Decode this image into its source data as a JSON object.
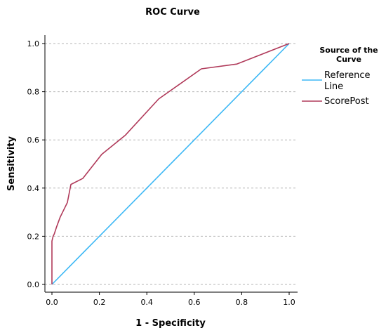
{
  "chart_data": {
    "type": "line",
    "title": "ROC Curve",
    "xlabel": "1 - Specificity",
    "ylabel": "Sensitivity",
    "xlim": [
      0,
      1
    ],
    "ylim": [
      0,
      1
    ],
    "x_ticks": [
      "0.0",
      "0.2",
      "0.4",
      "0.6",
      "0.8",
      "1.0"
    ],
    "y_ticks": [
      "0.0",
      "0.2",
      "0.4",
      "0.6",
      "0.8",
      "1.0"
    ],
    "grid": "horizontal dashed",
    "legend": {
      "title": "Source of the Curve",
      "placement": "right",
      "entries": [
        "Reference Line",
        "ScorePost"
      ]
    },
    "series": [
      {
        "name": "Reference Line",
        "color": "#3db8f5",
        "x": [
          0,
          1
        ],
        "y": [
          0,
          1
        ]
      },
      {
        "name": "ScorePost",
        "color": "#b03a5a",
        "x": [
          0.0,
          0.0,
          0.0,
          0.005,
          0.01,
          0.02,
          0.035,
          0.05,
          0.065,
          0.08,
          0.13,
          0.21,
          0.31,
          0.45,
          0.63,
          0.78,
          1.0
        ],
        "y": [
          0.0,
          0.1,
          0.18,
          0.2,
          0.21,
          0.24,
          0.28,
          0.31,
          0.34,
          0.415,
          0.44,
          0.54,
          0.62,
          0.77,
          0.895,
          0.915,
          1.0
        ]
      }
    ]
  }
}
